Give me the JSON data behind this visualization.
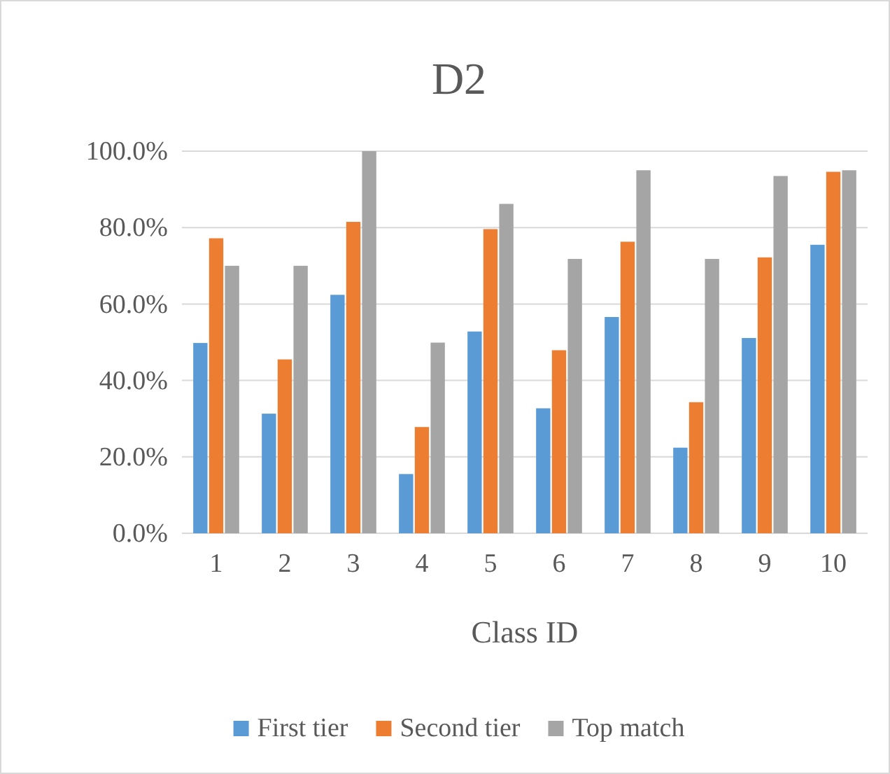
{
  "chart_data": {
    "type": "bar",
    "title": "D2",
    "xlabel": "Class ID",
    "categories": [
      "1",
      "2",
      "3",
      "4",
      "5",
      "6",
      "7",
      "8",
      "9",
      "10"
    ],
    "series": [
      {
        "name": "First tier",
        "color": "#5b9bd5",
        "values": [
          49.8,
          31.3,
          62.4,
          15.5,
          52.8,
          32.7,
          56.6,
          22.4,
          51.1,
          75.5
        ]
      },
      {
        "name": "Second tier",
        "color": "#ed7d31",
        "values": [
          77.2,
          45.5,
          81.5,
          27.8,
          79.6,
          47.9,
          76.3,
          34.3,
          72.2,
          94.6
        ]
      },
      {
        "name": "Top match",
        "color": "#a5a5a5",
        "values": [
          70.0,
          70.0,
          100.0,
          49.9,
          86.2,
          71.8,
          95.0,
          71.8,
          93.5,
          95.0
        ]
      }
    ],
    "ylim": [
      0,
      100
    ],
    "yticks": [
      {
        "value": 0,
        "label": "0.0%"
      },
      {
        "value": 20,
        "label": "20.0%"
      },
      {
        "value": 40,
        "label": "40.0%"
      },
      {
        "value": 60,
        "label": "60.0%"
      },
      {
        "value": 80,
        "label": "80.0%"
      },
      {
        "value": 100,
        "label": "100.0%"
      }
    ],
    "grid": "y",
    "legend": "bottom"
  }
}
